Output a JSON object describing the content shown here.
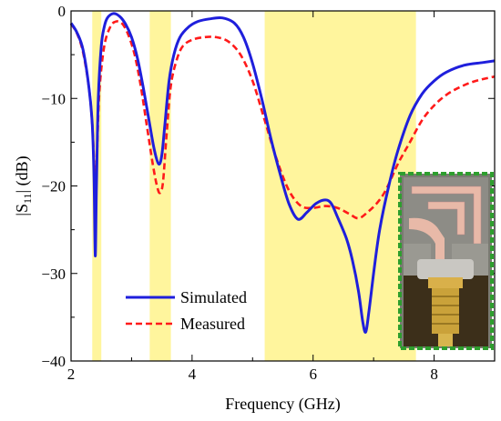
{
  "chart_data": {
    "type": "line",
    "xlabel": "Frequency (GHz)",
    "ylabel": "|S11| (dB)",
    "xlim": [
      2,
      9
    ],
    "ylim": [
      -40,
      0
    ],
    "xticks": [
      2,
      4,
      6,
      8
    ],
    "yticks": [
      0,
      -10,
      -20,
      -30,
      -40
    ],
    "grid": false,
    "legend_position": "lower-left",
    "highlight_bands": [
      [
        2.35,
        2.5
      ],
      [
        3.3,
        3.65
      ],
      [
        5.2,
        7.7
      ]
    ],
    "highlight_color": "#fff59d",
    "series": [
      {
        "name": "Simulated",
        "color": "#1f1fdc",
        "dash": "solid",
        "x": [
          2.0,
          2.1,
          2.2,
          2.3,
          2.35,
          2.38,
          2.4,
          2.42,
          2.45,
          2.5,
          2.55,
          2.6,
          2.7,
          2.8,
          2.9,
          3.0,
          3.1,
          3.2,
          3.3,
          3.38,
          3.45,
          3.5,
          3.55,
          3.62,
          3.7,
          3.8,
          3.95,
          4.1,
          4.3,
          4.5,
          4.7,
          4.85,
          5.0,
          5.15,
          5.3,
          5.45,
          5.6,
          5.75,
          5.9,
          6.05,
          6.2,
          6.3,
          6.4,
          6.55,
          6.65,
          6.75,
          6.82,
          6.87,
          6.92,
          7.0,
          7.1,
          7.25,
          7.4,
          7.6,
          7.8,
          8.0,
          8.2,
          8.5,
          8.8,
          9.0
        ],
        "y": [
          -1.4,
          -2.5,
          -4.5,
          -9.0,
          -13.0,
          -19.0,
          -28.0,
          -20.0,
          -10.0,
          -4.0,
          -1.8,
          -0.8,
          -0.3,
          -0.6,
          -1.5,
          -3.0,
          -5.5,
          -9.0,
          -13.0,
          -16.0,
          -17.5,
          -16.5,
          -13.0,
          -8.0,
          -5.0,
          -3.0,
          -1.8,
          -1.2,
          -0.9,
          -0.8,
          -1.4,
          -3.0,
          -6.0,
          -10.0,
          -14.5,
          -18.5,
          -22.0,
          -23.8,
          -23.0,
          -22.0,
          -21.6,
          -22.0,
          -23.5,
          -26.0,
          -28.5,
          -32.0,
          -35.5,
          -36.7,
          -34.5,
          -30.0,
          -25.0,
          -20.0,
          -16.0,
          -12.0,
          -9.5,
          -8.0,
          -7.0,
          -6.2,
          -5.9,
          -5.7
        ]
      },
      {
        "name": "Measured",
        "color": "#ff1a1a",
        "dash": "dashed",
        "x": [
          2.0,
          2.1,
          2.2,
          2.3,
          2.35,
          2.38,
          2.4,
          2.43,
          2.47,
          2.55,
          2.65,
          2.75,
          2.85,
          2.95,
          3.05,
          3.15,
          3.25,
          3.35,
          3.42,
          3.47,
          3.52,
          3.58,
          3.65,
          3.75,
          3.85,
          4.0,
          4.2,
          4.4,
          4.6,
          4.8,
          5.0,
          5.2,
          5.4,
          5.6,
          5.8,
          6.0,
          6.2,
          6.4,
          6.6,
          6.75,
          6.9,
          7.05,
          7.2,
          7.4,
          7.6,
          7.8,
          8.0,
          8.2,
          8.4,
          8.6,
          8.8,
          9.0
        ],
        "y": [
          -1.5,
          -2.6,
          -4.8,
          -9.0,
          -13.0,
          -17.0,
          -20.0,
          -16.0,
          -9.0,
          -4.0,
          -1.8,
          -1.2,
          -1.5,
          -2.8,
          -5.0,
          -8.5,
          -13.0,
          -17.5,
          -20.0,
          -20.8,
          -19.5,
          -14.0,
          -8.5,
          -5.5,
          -4.0,
          -3.3,
          -3.0,
          -3.0,
          -3.5,
          -5.0,
          -8.0,
          -12.5,
          -17.0,
          -20.5,
          -22.3,
          -22.5,
          -22.3,
          -22.5,
          -23.2,
          -23.7,
          -23.0,
          -22.0,
          -20.5,
          -17.5,
          -15.0,
          -12.5,
          -10.8,
          -9.6,
          -8.8,
          -8.2,
          -7.8,
          -7.5
        ]
      }
    ]
  },
  "inset": {
    "description_icon": "antenna-prototype-photo",
    "border_color": "#2e9e2e"
  }
}
